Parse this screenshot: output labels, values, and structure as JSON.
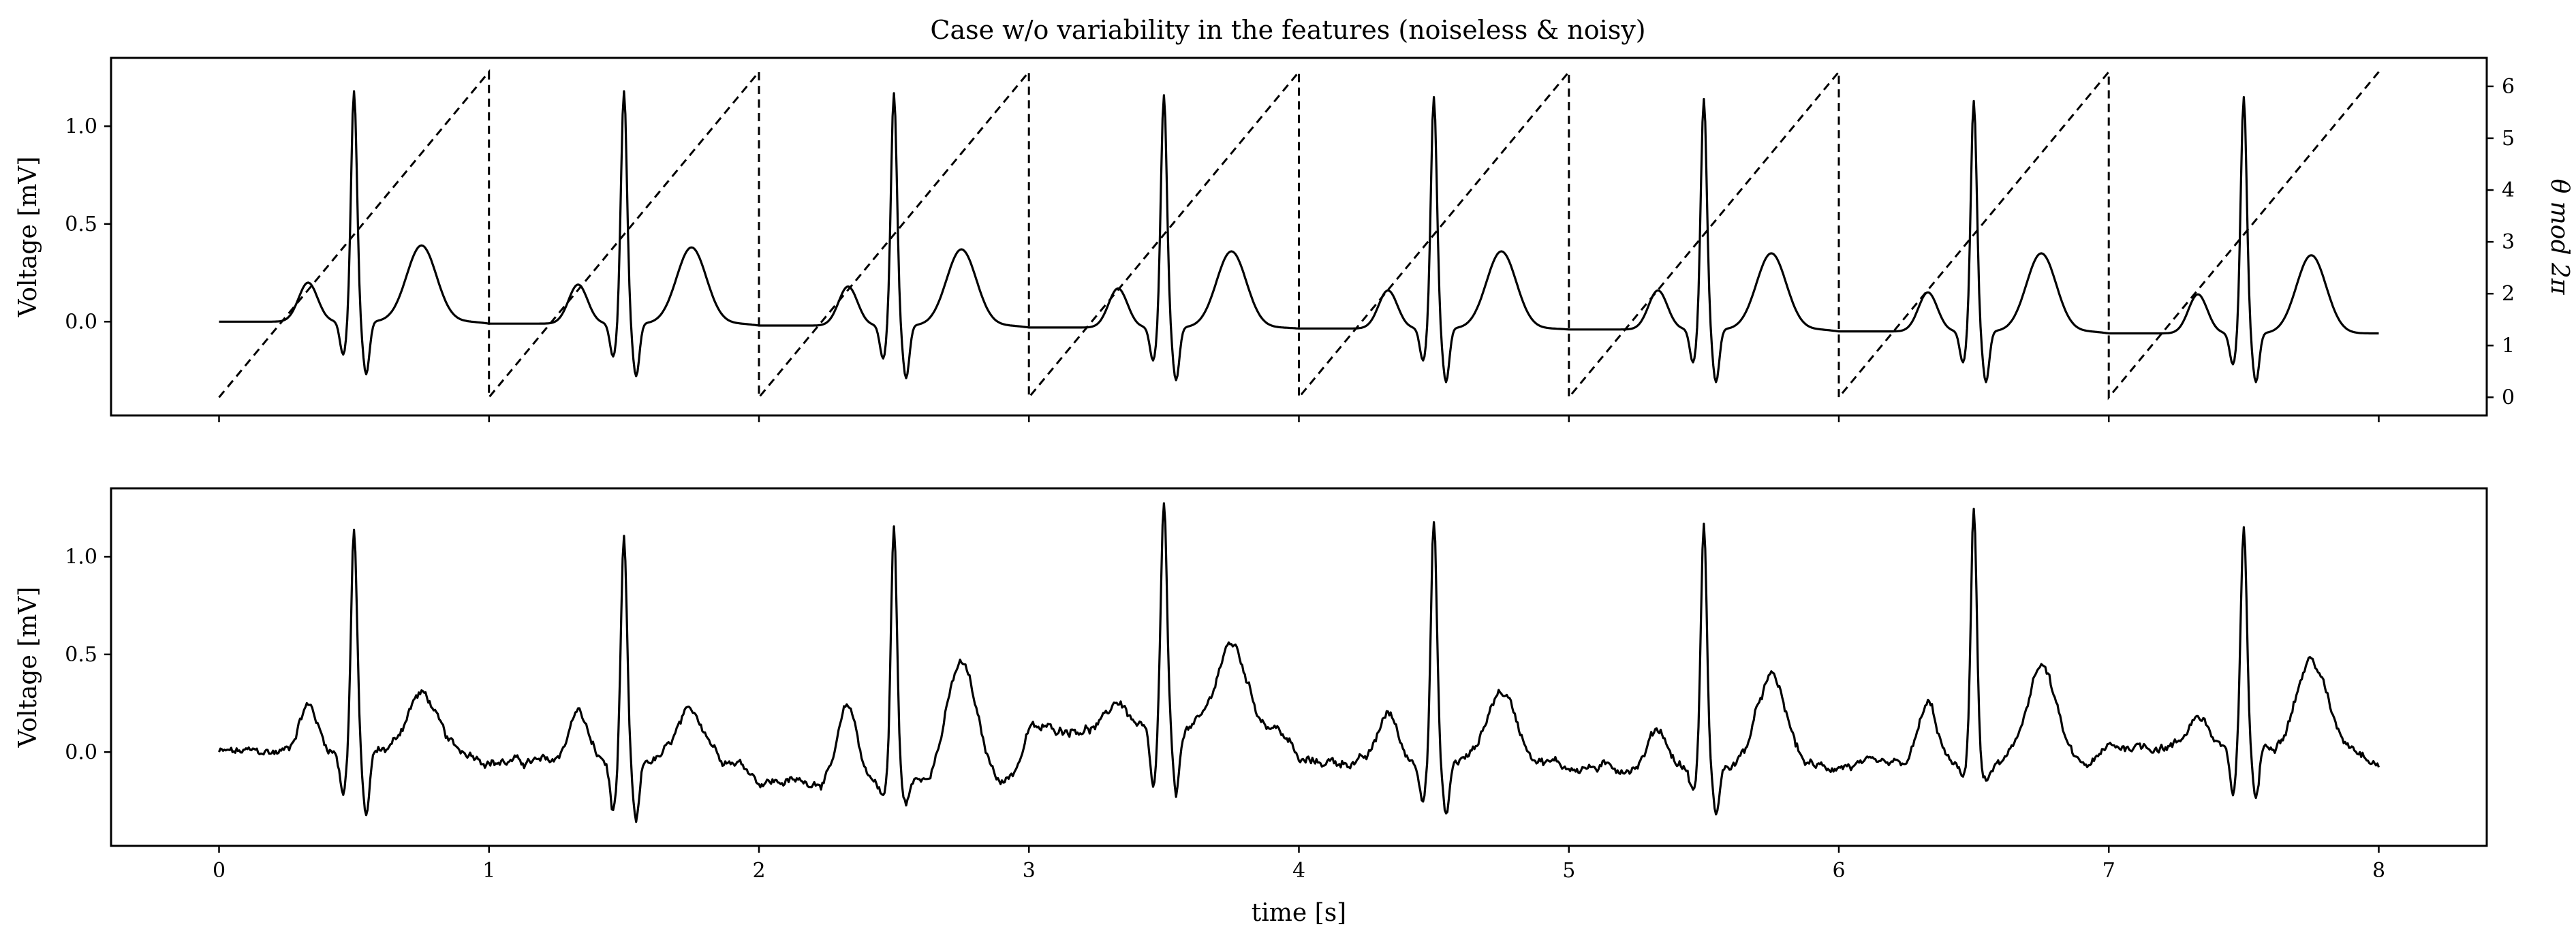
{
  "chart_data": {
    "title": "Case w/o variability in the features (noiseless & noisy)",
    "panels": [
      {
        "type": "line",
        "ylabel": "Voltage [mV]",
        "ylabel_right": "θ mod 2π",
        "xlim": [
          -0.4,
          8.4
        ],
        "ylim": [
          -0.48,
          1.35
        ],
        "ylim_right": [
          -0.35,
          6.55
        ],
        "y_ticks": [
          "0.0",
          "0.5",
          "1.0"
        ],
        "y_ticks_right": [
          "0",
          "1",
          "2",
          "3",
          "4",
          "5",
          "6"
        ],
        "x_ticks_labeled": false,
        "series": [
          {
            "style": "solid",
            "axis": "left",
            "description_points": "noiseless ECG: per beat (1 s) — P wave peak ~0.20 mV at +0.33 s, Q dip ~-0.17 mV at +0.46 s, R peak ~1.18 mV at +0.50 s, S dip ~-0.27 mV at +0.55 s, T wave peak ~0.39 mV at +0.75 s; baseline drifts from 0.00 to -0.06 mV",
            "beats": [
              {
                "beat": 1,
                "baseline": 0.0,
                "P": 0.2,
                "Q": -0.17,
                "R": 1.18,
                "S": -0.27,
                "T": 0.39
              },
              {
                "beat": 2,
                "baseline": -0.01,
                "P": 0.19,
                "Q": -0.18,
                "R": 1.18,
                "S": -0.28,
                "T": 0.38
              },
              {
                "beat": 3,
                "baseline": -0.02,
                "P": 0.18,
                "Q": -0.19,
                "R": 1.17,
                "S": -0.29,
                "T": 0.37
              },
              {
                "beat": 4,
                "baseline": -0.03,
                "P": 0.17,
                "Q": -0.2,
                "R": 1.16,
                "S": -0.3,
                "T": 0.36
              },
              {
                "beat": 5,
                "baseline": -0.035,
                "P": 0.16,
                "Q": -0.2,
                "R": 1.15,
                "S": -0.31,
                "T": 0.36
              },
              {
                "beat": 6,
                "baseline": -0.04,
                "P": 0.16,
                "Q": -0.21,
                "R": 1.14,
                "S": -0.31,
                "T": 0.35
              },
              {
                "beat": 7,
                "baseline": -0.05,
                "P": 0.15,
                "Q": -0.21,
                "R": 1.13,
                "S": -0.31,
                "T": 0.35
              },
              {
                "beat": 8,
                "baseline": -0.06,
                "P": 0.14,
                "Q": -0.22,
                "R": 1.15,
                "S": -0.31,
                "T": 0.34
              }
            ]
          },
          {
            "style": "dashed",
            "axis": "right",
            "description_points": "phase sawtooth θ mod 2π rising linearly from 0 to 6.28 over each second, resetting at integer seconds",
            "x": [
              0,
              1,
              1,
              2,
              2,
              3,
              3,
              4,
              4,
              5,
              5,
              6,
              6,
              7,
              7,
              8
            ],
            "y": [
              0,
              6.28,
              0,
              6.28,
              0,
              6.28,
              0,
              6.28,
              0,
              6.28,
              0,
              6.28,
              0,
              6.28,
              0,
              6.28
            ]
          }
        ]
      },
      {
        "type": "line",
        "ylabel": "Voltage [mV]",
        "xlabel": "time [s]",
        "xlim": [
          -0.4,
          8.4
        ],
        "ylim": [
          -0.48,
          1.35
        ],
        "y_ticks": [
          "0.0",
          "0.5",
          "1.0"
        ],
        "x_ticks": [
          "0",
          "1",
          "2",
          "3",
          "4",
          "5",
          "6",
          "7",
          "8"
        ],
        "series": [
          {
            "style": "solid",
            "axis": "left",
            "description_points": "noisy ECG: same morphology with added high-frequency noise and wandering baseline",
            "beats": [
              {
                "beat": 1,
                "baseline": 0.0,
                "P": 0.24,
                "Q": -0.2,
                "R": 1.14,
                "S": -0.33,
                "T": 0.3
              },
              {
                "beat": 2,
                "baseline": -0.05,
                "P": 0.21,
                "Q": -0.3,
                "R": 1.07,
                "S": -0.37,
                "T": 0.2
              },
              {
                "beat": 3,
                "baseline": -0.15,
                "P": 0.23,
                "Q": -0.22,
                "R": 1.15,
                "S": -0.26,
                "T": 0.45
              },
              {
                "beat": 4,
                "baseline": 0.12,
                "P": 0.26,
                "Q": -0.2,
                "R": 1.26,
                "S": -0.23,
                "T": 0.55
              },
              {
                "beat": 5,
                "baseline": -0.05,
                "P": 0.2,
                "Q": -0.22,
                "R": 1.17,
                "S": -0.33,
                "T": 0.31
              },
              {
                "beat": 6,
                "baseline": -0.08,
                "P": 0.12,
                "Q": -0.2,
                "R": 1.16,
                "S": -0.31,
                "T": 0.38
              },
              {
                "beat": 7,
                "baseline": -0.07,
                "P": 0.24,
                "Q": -0.14,
                "R": 1.26,
                "S": -0.16,
                "T": 0.44
              },
              {
                "beat": 8,
                "baseline": 0.03,
                "P": 0.19,
                "Q": -0.24,
                "R": 1.16,
                "S": -0.23,
                "T": 0.47
              }
            ],
            "end_value": -0.05
          }
        ]
      }
    ]
  }
}
